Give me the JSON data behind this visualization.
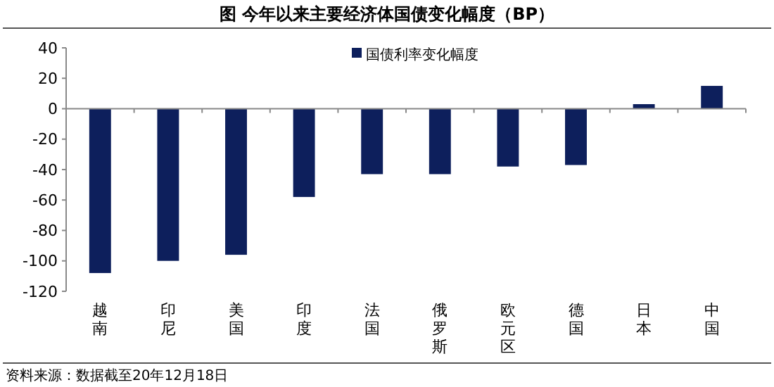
{
  "chart_data": {
    "type": "bar",
    "title": "图  今年以来主要经济体国债变化幅度（BP）",
    "categories": [
      "越南",
      "印尼",
      "美国",
      "印度",
      "法国",
      "俄罗斯",
      "欧元区",
      "德国",
      "日本",
      "中国"
    ],
    "series": [
      {
        "name": "国债利率变化幅度",
        "color": "#0d1f5c",
        "values": [
          -108,
          -100,
          -96,
          -58,
          -43,
          -43,
          -38,
          -37,
          3,
          15
        ]
      }
    ],
    "ylim": [
      -120,
      40
    ],
    "yticks": [
      -120,
      -100,
      -80,
      -60,
      -40,
      -20,
      0,
      20,
      40
    ],
    "legend": "top",
    "annotations": [
      "资料来源：数据截至20年12月18日"
    ]
  }
}
